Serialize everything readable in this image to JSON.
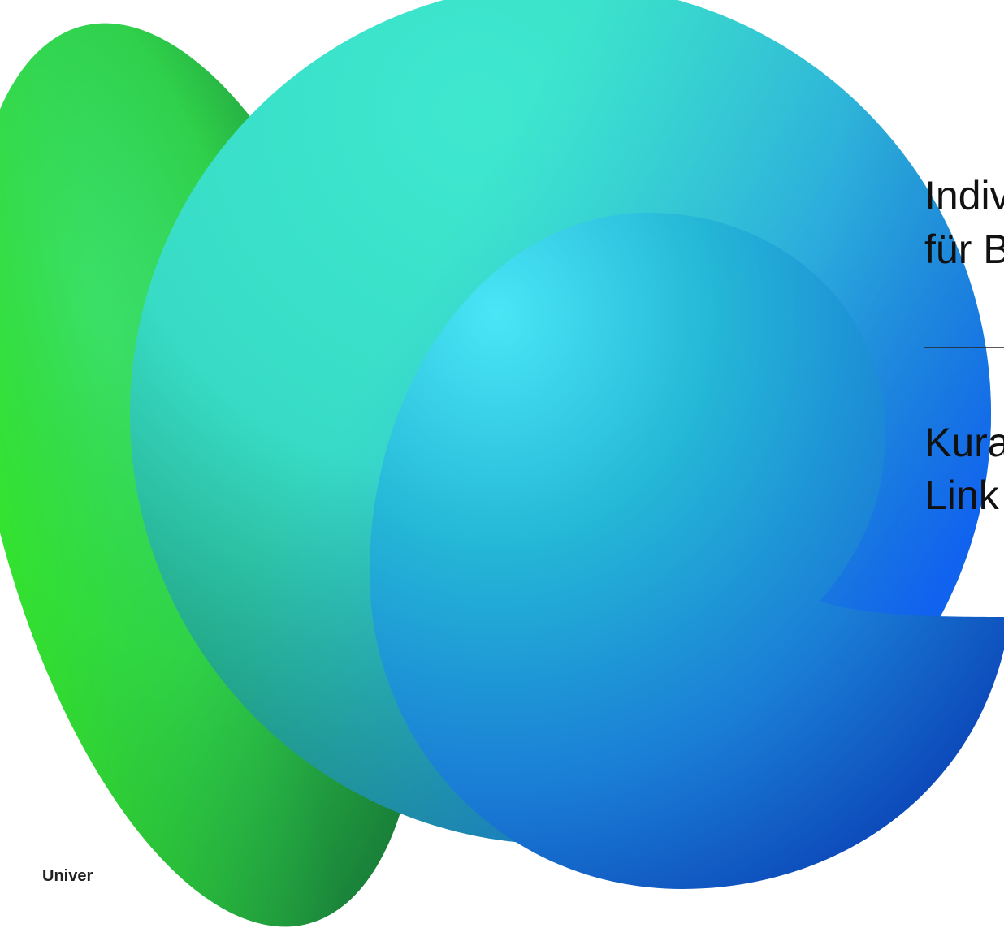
{
  "slide": {
    "heading_line_1": "Indiv",
    "heading_line_2": "für B",
    "subtitle_line_1": "Kura",
    "subtitle_line_2": "Link",
    "footer": "Univer"
  }
}
